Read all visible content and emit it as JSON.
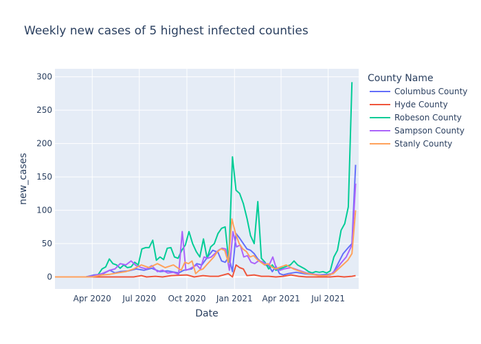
{
  "chart_data": {
    "type": "line",
    "title": "Weekly new cases of 5 highest infected counties",
    "xlabel": "Date",
    "ylabel": "new_cases",
    "xlim": [
      "2020-01-20",
      "2021-08-29"
    ],
    "ylim": [
      -18,
      312
    ],
    "x_ticks": [
      {
        "date": "2020-04-01",
        "label": "Apr 2020"
      },
      {
        "date": "2020-07-01",
        "label": "Jul 2020"
      },
      {
        "date": "2020-10-01",
        "label": "Oct 2020"
      },
      {
        "date": "2021-01-01",
        "label": "Jan 2021"
      },
      {
        "date": "2021-04-01",
        "label": "Apr 2021"
      },
      {
        "date": "2021-07-01",
        "label": "Jul 2021"
      }
    ],
    "y_ticks": [
      0,
      50,
      100,
      150,
      200,
      250,
      300
    ],
    "grid": true,
    "legend": {
      "title": "County Name",
      "placement": "right"
    },
    "series": [
      {
        "name": "Columbus County",
        "color": "#636efa",
        "points": [
          [
            "2020-01-20",
            0
          ],
          [
            "2020-02-20",
            0
          ],
          [
            "2020-03-20",
            0
          ],
          [
            "2020-04-05",
            3
          ],
          [
            "2020-04-20",
            4
          ],
          [
            "2020-05-05",
            10
          ],
          [
            "2020-05-15",
            6
          ],
          [
            "2020-05-25",
            8
          ],
          [
            "2020-06-10",
            9
          ],
          [
            "2020-06-25",
            12
          ],
          [
            "2020-07-10",
            10
          ],
          [
            "2020-07-25",
            13
          ],
          [
            "2020-08-10",
            8
          ],
          [
            "2020-08-25",
            9
          ],
          [
            "2020-09-15",
            6
          ],
          [
            "2020-09-25",
            10
          ],
          [
            "2020-10-10",
            12
          ],
          [
            "2020-10-20",
            20
          ],
          [
            "2020-10-30",
            18
          ],
          [
            "2020-11-10",
            30
          ],
          [
            "2020-11-20",
            40
          ],
          [
            "2020-11-30",
            37
          ],
          [
            "2020-12-07",
            24
          ],
          [
            "2020-12-14",
            22
          ],
          [
            "2020-12-21",
            30
          ],
          [
            "2020-12-28",
            8
          ],
          [
            "2021-01-04",
            65
          ],
          [
            "2021-01-11",
            58
          ],
          [
            "2021-01-18",
            50
          ],
          [
            "2021-01-25",
            42
          ],
          [
            "2021-02-01",
            40
          ],
          [
            "2021-02-08",
            35
          ],
          [
            "2021-02-15",
            27
          ],
          [
            "2021-02-22",
            22
          ],
          [
            "2021-03-01",
            18
          ],
          [
            "2021-03-08",
            17
          ],
          [
            "2021-03-15",
            8
          ],
          [
            "2021-03-22",
            16
          ],
          [
            "2021-03-29",
            5
          ],
          [
            "2021-04-05",
            3
          ],
          [
            "2021-04-15",
            5
          ],
          [
            "2021-04-30",
            7
          ],
          [
            "2021-05-15",
            5
          ],
          [
            "2021-05-30",
            4
          ],
          [
            "2021-06-15",
            3
          ],
          [
            "2021-07-01",
            4
          ],
          [
            "2021-07-10",
            5
          ],
          [
            "2021-07-20",
            20
          ],
          [
            "2021-07-30",
            35
          ],
          [
            "2021-08-10",
            45
          ],
          [
            "2021-08-16",
            50
          ],
          [
            "2021-08-23",
            168
          ]
        ]
      },
      {
        "name": "Hyde County",
        "color": "#ef553b",
        "points": [
          [
            "2020-01-20",
            0
          ],
          [
            "2020-03-01",
            0
          ],
          [
            "2020-05-01",
            0
          ],
          [
            "2020-06-20",
            0
          ],
          [
            "2020-07-05",
            2
          ],
          [
            "2020-07-15",
            0
          ],
          [
            "2020-08-01",
            1
          ],
          [
            "2020-08-15",
            0
          ],
          [
            "2020-09-01",
            2
          ],
          [
            "2020-10-01",
            3
          ],
          [
            "2020-10-15",
            0
          ],
          [
            "2020-11-01",
            2
          ],
          [
            "2020-11-15",
            1
          ],
          [
            "2020-12-01",
            1
          ],
          [
            "2020-12-20",
            5
          ],
          [
            "2020-12-28",
            0
          ],
          [
            "2021-01-04",
            18
          ],
          [
            "2021-01-11",
            14
          ],
          [
            "2021-01-18",
            12
          ],
          [
            "2021-01-25",
            2
          ],
          [
            "2021-02-08",
            3
          ],
          [
            "2021-02-22",
            1
          ],
          [
            "2021-03-08",
            1
          ],
          [
            "2021-03-22",
            0
          ],
          [
            "2021-04-05",
            1
          ],
          [
            "2021-04-20",
            3
          ],
          [
            "2021-05-05",
            1
          ],
          [
            "2021-05-20",
            0
          ],
          [
            "2021-06-10",
            0
          ],
          [
            "2021-07-05",
            0
          ],
          [
            "2021-07-20",
            1
          ],
          [
            "2021-08-01",
            0
          ],
          [
            "2021-08-16",
            1
          ],
          [
            "2021-08-23",
            2
          ]
        ]
      },
      {
        "name": "Robeson County",
        "color": "#00cc96",
        "points": [
          [
            "2020-01-20",
            0
          ],
          [
            "2020-02-20",
            0
          ],
          [
            "2020-03-10",
            0
          ],
          [
            "2020-03-20",
            0
          ],
          [
            "2020-04-05",
            2
          ],
          [
            "2020-04-12",
            3
          ],
          [
            "2020-04-20",
            12
          ],
          [
            "2020-04-27",
            15
          ],
          [
            "2020-05-04",
            27
          ],
          [
            "2020-05-11",
            20
          ],
          [
            "2020-05-18",
            18
          ],
          [
            "2020-05-25",
            13
          ],
          [
            "2020-06-01",
            18
          ],
          [
            "2020-06-08",
            14
          ],
          [
            "2020-06-15",
            15
          ],
          [
            "2020-06-22",
            22
          ],
          [
            "2020-06-29",
            18
          ],
          [
            "2020-07-06",
            42
          ],
          [
            "2020-07-13",
            44
          ],
          [
            "2020-07-20",
            44
          ],
          [
            "2020-07-27",
            55
          ],
          [
            "2020-08-03",
            25
          ],
          [
            "2020-08-10",
            30
          ],
          [
            "2020-08-17",
            26
          ],
          [
            "2020-08-24",
            43
          ],
          [
            "2020-08-31",
            44
          ],
          [
            "2020-09-07",
            30
          ],
          [
            "2020-09-14",
            28
          ],
          [
            "2020-09-21",
            40
          ],
          [
            "2020-09-28",
            48
          ],
          [
            "2020-10-05",
            68
          ],
          [
            "2020-10-12",
            50
          ],
          [
            "2020-10-19",
            38
          ],
          [
            "2020-10-26",
            30
          ],
          [
            "2020-11-02",
            57
          ],
          [
            "2020-11-09",
            28
          ],
          [
            "2020-11-16",
            45
          ],
          [
            "2020-11-23",
            50
          ],
          [
            "2020-11-30",
            65
          ],
          [
            "2020-12-07",
            73
          ],
          [
            "2020-12-14",
            75
          ],
          [
            "2020-12-21",
            22
          ],
          [
            "2020-12-28",
            180
          ],
          [
            "2021-01-04",
            130
          ],
          [
            "2021-01-11",
            125
          ],
          [
            "2021-01-18",
            110
          ],
          [
            "2021-01-25",
            88
          ],
          [
            "2021-02-01",
            62
          ],
          [
            "2021-02-08",
            50
          ],
          [
            "2021-02-15",
            113
          ],
          [
            "2021-02-22",
            28
          ],
          [
            "2021-03-01",
            22
          ],
          [
            "2021-03-08",
            12
          ],
          [
            "2021-03-15",
            18
          ],
          [
            "2021-03-22",
            10
          ],
          [
            "2021-03-29",
            12
          ],
          [
            "2021-04-05",
            14
          ],
          [
            "2021-04-12",
            16
          ],
          [
            "2021-04-19",
            18
          ],
          [
            "2021-04-26",
            24
          ],
          [
            "2021-05-03",
            18
          ],
          [
            "2021-05-10",
            15
          ],
          [
            "2021-05-17",
            12
          ],
          [
            "2021-05-24",
            8
          ],
          [
            "2021-05-31",
            6
          ],
          [
            "2021-06-07",
            8
          ],
          [
            "2021-06-14",
            7
          ],
          [
            "2021-06-21",
            8
          ],
          [
            "2021-06-28",
            6
          ],
          [
            "2021-07-05",
            9
          ],
          [
            "2021-07-12",
            30
          ],
          [
            "2021-07-19",
            40
          ],
          [
            "2021-07-26",
            70
          ],
          [
            "2021-08-02",
            80
          ],
          [
            "2021-08-09",
            105
          ],
          [
            "2021-08-16",
            292
          ]
        ]
      },
      {
        "name": "Sampson County",
        "color": "#ab63fa",
        "points": [
          [
            "2020-01-20",
            0
          ],
          [
            "2020-02-20",
            0
          ],
          [
            "2020-03-20",
            0
          ],
          [
            "2020-04-05",
            2
          ],
          [
            "2020-04-20",
            5
          ],
          [
            "2020-05-05",
            10
          ],
          [
            "2020-05-15",
            12
          ],
          [
            "2020-05-25",
            20
          ],
          [
            "2020-06-05",
            18
          ],
          [
            "2020-06-15",
            24
          ],
          [
            "2020-06-25",
            17
          ],
          [
            "2020-07-05",
            14
          ],
          [
            "2020-07-15",
            12
          ],
          [
            "2020-07-25",
            17
          ],
          [
            "2020-08-05",
            8
          ],
          [
            "2020-08-15",
            10
          ],
          [
            "2020-08-25",
            6
          ],
          [
            "2020-09-05",
            7
          ],
          [
            "2020-09-15",
            4
          ],
          [
            "2020-09-22",
            68
          ],
          [
            "2020-09-29",
            10
          ],
          [
            "2020-10-06",
            12
          ],
          [
            "2020-10-13",
            15
          ],
          [
            "2020-10-20",
            18
          ],
          [
            "2020-10-27",
            12
          ],
          [
            "2020-11-03",
            30
          ],
          [
            "2020-11-10",
            28
          ],
          [
            "2020-11-17",
            30
          ],
          [
            "2020-11-24",
            35
          ],
          [
            "2020-12-01",
            40
          ],
          [
            "2020-12-08",
            43
          ],
          [
            "2020-12-15",
            42
          ],
          [
            "2020-12-22",
            10
          ],
          [
            "2020-12-29",
            68
          ],
          [
            "2021-01-05",
            45
          ],
          [
            "2021-01-12",
            48
          ],
          [
            "2021-01-19",
            30
          ],
          [
            "2021-01-26",
            32
          ],
          [
            "2021-02-02",
            22
          ],
          [
            "2021-02-09",
            20
          ],
          [
            "2021-02-16",
            24
          ],
          [
            "2021-02-23",
            23
          ],
          [
            "2021-03-02",
            20
          ],
          [
            "2021-03-09",
            18
          ],
          [
            "2021-03-16",
            30
          ],
          [
            "2021-03-23",
            12
          ],
          [
            "2021-03-30",
            10
          ],
          [
            "2021-04-06",
            12
          ],
          [
            "2021-04-20",
            14
          ],
          [
            "2021-05-05",
            10
          ],
          [
            "2021-05-20",
            6
          ],
          [
            "2021-06-05",
            4
          ],
          [
            "2021-06-20",
            2
          ],
          [
            "2021-07-05",
            3
          ],
          [
            "2021-07-15",
            10
          ],
          [
            "2021-07-25",
            20
          ],
          [
            "2021-08-05",
            30
          ],
          [
            "2021-08-16",
            48
          ],
          [
            "2021-08-23",
            140
          ]
        ]
      },
      {
        "name": "Stanly County",
        "color": "#ffa15a",
        "points": [
          [
            "2020-01-20",
            0
          ],
          [
            "2020-02-20",
            0
          ],
          [
            "2020-04-01",
            0
          ],
          [
            "2020-04-20",
            3
          ],
          [
            "2020-05-05",
            4
          ],
          [
            "2020-05-20",
            6
          ],
          [
            "2020-06-05",
            8
          ],
          [
            "2020-06-20",
            12
          ],
          [
            "2020-07-05",
            18
          ],
          [
            "2020-07-20",
            14
          ],
          [
            "2020-08-05",
            20
          ],
          [
            "2020-08-20",
            14
          ],
          [
            "2020-09-05",
            18
          ],
          [
            "2020-09-20",
            10
          ],
          [
            "2020-09-27",
            22
          ],
          [
            "2020-10-04",
            20
          ],
          [
            "2020-10-11",
            24
          ],
          [
            "2020-10-18",
            5
          ],
          [
            "2020-10-25",
            10
          ],
          [
            "2020-11-01",
            12
          ],
          [
            "2020-11-08",
            18
          ],
          [
            "2020-11-15",
            24
          ],
          [
            "2020-11-22",
            30
          ],
          [
            "2020-11-29",
            38
          ],
          [
            "2020-12-06",
            42
          ],
          [
            "2020-12-13",
            40
          ],
          [
            "2020-12-20",
            22
          ],
          [
            "2020-12-27",
            87
          ],
          [
            "2021-01-03",
            65
          ],
          [
            "2021-01-10",
            50
          ],
          [
            "2021-01-17",
            42
          ],
          [
            "2021-01-24",
            38
          ],
          [
            "2021-01-31",
            30
          ],
          [
            "2021-02-07",
            32
          ],
          [
            "2021-02-14",
            26
          ],
          [
            "2021-02-21",
            22
          ],
          [
            "2021-02-28",
            18
          ],
          [
            "2021-03-07",
            20
          ],
          [
            "2021-03-14",
            15
          ],
          [
            "2021-03-21",
            12
          ],
          [
            "2021-03-28",
            14
          ],
          [
            "2021-04-04",
            16
          ],
          [
            "2021-04-11",
            18
          ],
          [
            "2021-04-18",
            15
          ],
          [
            "2021-04-25",
            12
          ],
          [
            "2021-05-02",
            10
          ],
          [
            "2021-05-16",
            6
          ],
          [
            "2021-05-30",
            4
          ],
          [
            "2021-06-13",
            2
          ],
          [
            "2021-06-27",
            2
          ],
          [
            "2021-07-11",
            5
          ],
          [
            "2021-07-25",
            15
          ],
          [
            "2021-08-08",
            25
          ],
          [
            "2021-08-16",
            35
          ],
          [
            "2021-08-23",
            100
          ]
        ]
      }
    ]
  }
}
